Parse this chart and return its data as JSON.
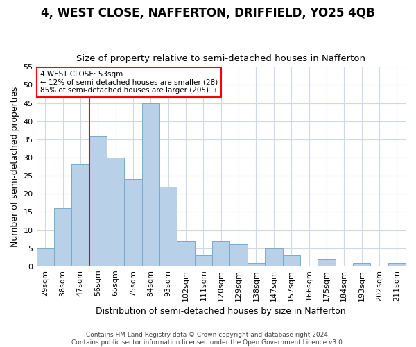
{
  "title": "4, WEST CLOSE, NAFFERTON, DRIFFIELD, YO25 4QB",
  "subtitle": "Size of property relative to semi-detached houses in Nafferton",
  "xlabel": "Distribution of semi-detached houses by size in Nafferton",
  "ylabel": "Number of semi-detached properties",
  "categories": [
    "29sqm",
    "38sqm",
    "47sqm",
    "56sqm",
    "65sqm",
    "75sqm",
    "84sqm",
    "93sqm",
    "102sqm",
    "111sqm",
    "120sqm",
    "129sqm",
    "138sqm",
    "147sqm",
    "157sqm",
    "166sqm",
    "175sqm",
    "184sqm",
    "193sqm",
    "202sqm",
    "211sqm"
  ],
  "values": [
    5,
    16,
    28,
    36,
    30,
    24,
    45,
    22,
    7,
    3,
    7,
    6,
    1,
    5,
    3,
    0,
    2,
    0,
    1,
    0,
    1
  ],
  "bar_color": "#b8d0e8",
  "bar_edge_color": "#7aaacb",
  "ylim": [
    0,
    55
  ],
  "yticks": [
    0,
    5,
    10,
    15,
    20,
    25,
    30,
    35,
    40,
    45,
    50,
    55
  ],
  "property_line_x": 2.5,
  "property_line_label": "4 WEST CLOSE: 53sqm",
  "annotation_line1": "← 12% of semi-detached houses are smaller (28)",
  "annotation_line2": "85% of semi-detached houses are larger (205) →",
  "footer": "Contains HM Land Registry data © Crown copyright and database right 2024.\nContains public sector information licensed under the Open Government Licence v3.0.",
  "background_color": "#ffffff",
  "grid_color": "#d0d8e8",
  "title_fontsize": 12,
  "subtitle_fontsize": 9.5,
  "axis_label_fontsize": 9,
  "tick_fontsize": 8,
  "footer_fontsize": 6.5
}
